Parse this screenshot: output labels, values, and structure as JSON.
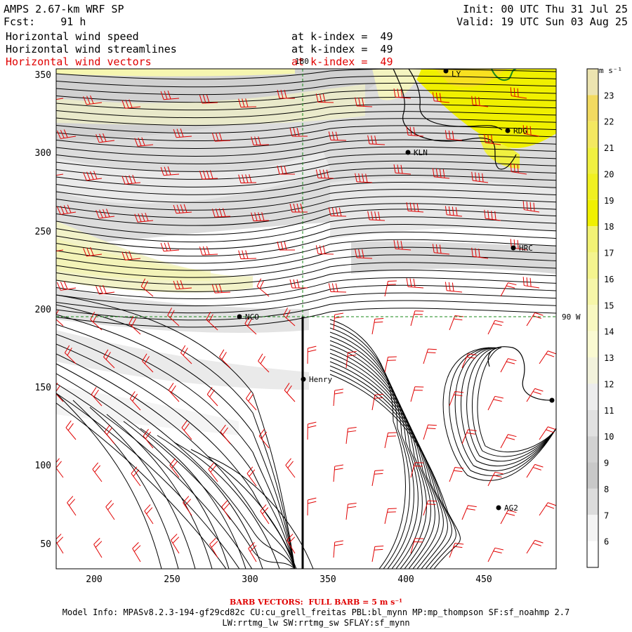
{
  "header": {
    "model": "AMPS 2.67-km WRF SP",
    "fcst": "Fcst:    91 h",
    "init": "Init: 00 UTC Thu 31 Jul 25",
    "valid": "Valid: 19 UTC Sun 03 Aug 25",
    "fields": [
      {
        "label": "Horizontal wind speed",
        "level": "at k-index =  49",
        "color": "#000000"
      },
      {
        "label": "Horizontal wind streamlines",
        "level": "at k-index =  49",
        "color": "#000000"
      },
      {
        "label": "Horizontal wind vectors",
        "level": "at k-index =  49",
        "color": "#e00000"
      }
    ]
  },
  "map": {
    "x_ticks": [
      "200",
      "250",
      "300",
      "350",
      "400",
      "450"
    ],
    "y_ticks": [
      "350",
      "300",
      "250",
      "200",
      "150",
      "100",
      "50"
    ],
    "meridian_label": "180",
    "parallel_label": "90 W",
    "stations": [
      {
        "name": "KLN"
      },
      {
        "name": "RDG"
      },
      {
        "name": "NCO"
      },
      {
        "name": "Henry"
      },
      {
        "name": "HRC"
      },
      {
        "name": "AG2"
      },
      {
        "name": "LY"
      }
    ]
  },
  "colorbar": {
    "unit": "m s⁻¹",
    "levels": [
      "6",
      "7",
      "8",
      "9",
      "10",
      "11",
      "12",
      "13",
      "14",
      "15",
      "16",
      "17",
      "18",
      "19",
      "20",
      "21",
      "22",
      "23"
    ],
    "colors": [
      "#ffffff",
      "#f4f4f4",
      "#dcdcdc",
      "#c8c8c8",
      "#d2d2d2",
      "#e1e1e1",
      "#ececec",
      "#f2f2dc",
      "#fafad2",
      "#f8f8c0",
      "#f6f6a8",
      "#f4f48e",
      "#f2f274",
      "#f0f000",
      "#f0f020",
      "#f0f040",
      "#f4e860",
      "#f2da60",
      "#ece4b0"
    ]
  },
  "footer": {
    "barb": "BARB VECTORS:  FULL BARB = 5 m s⁻¹",
    "model_info": "Model Info: MPASv8.2.3-194-gf29cd82c CU:cu_grell_freitas PBL:bl_mynn MP:mp_thompson SF:sf_noahmp 2.7",
    "model_info2": "LW:rrtmg_lw SW:rrtmg_sw SFLAY:sf_mynn"
  }
}
